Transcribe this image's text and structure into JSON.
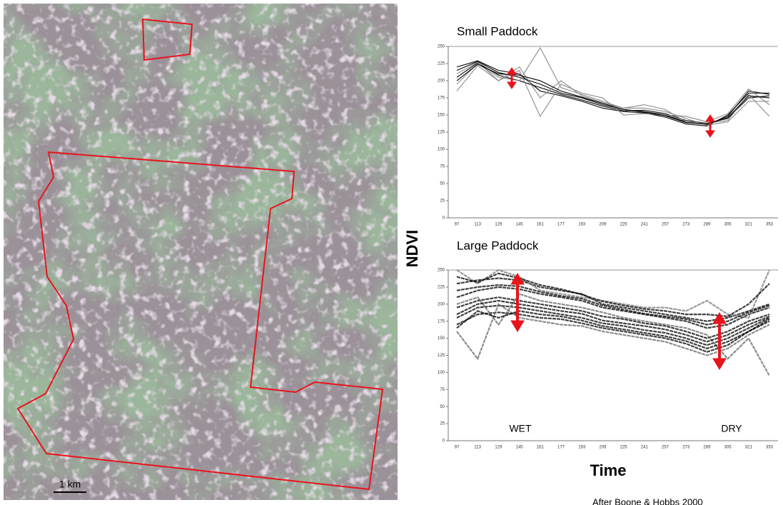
{
  "figure": {
    "y_label": "NDVI",
    "x_label": "Time",
    "scale_label": "1 km",
    "credit": "After Boone & Hobbs 2000",
    "wet_label": "WET",
    "dry_label": "DRY"
  },
  "chart_data": [
    {
      "type": "line",
      "title": "Small Paddock",
      "categories": [
        "97",
        "113",
        "129",
        "145",
        "161",
        "177",
        "193",
        "209",
        "225",
        "241",
        "257",
        "273",
        "289",
        "305",
        "321",
        "353"
      ],
      "ylim": [
        0,
        250
      ],
      "yticks": [
        0,
        25,
        50,
        75,
        100,
        125,
        150,
        175,
        200,
        225,
        250
      ],
      "series": [
        {
          "color": "#000000",
          "values": [
            215,
            228,
            212,
            205,
            195,
            182,
            175,
            165,
            158,
            155,
            150,
            140,
            136,
            148,
            185,
            180
          ]
        },
        {
          "color": "#000000",
          "values": [
            205,
            226,
            208,
            200,
            190,
            180,
            172,
            163,
            156,
            157,
            152,
            142,
            138,
            145,
            175,
            178
          ]
        },
        {
          "color": "#000000",
          "values": [
            220,
            229,
            215,
            210,
            185,
            178,
            170,
            160,
            155,
            153,
            147,
            137,
            134,
            150,
            182,
            182
          ]
        },
        {
          "color": "#888888",
          "values": [
            195,
            225,
            205,
            200,
            248,
            190,
            180,
            170,
            160,
            160,
            155,
            145,
            135,
            140,
            170,
            170
          ]
        },
        {
          "color": "#888888",
          "values": [
            185,
            222,
            200,
            215,
            148,
            195,
            182,
            175,
            150,
            152,
            150,
            148,
            140,
            152,
            188,
            165
          ]
        },
        {
          "color": "#888888",
          "values": [
            210,
            227,
            200,
            220,
            175,
            200,
            178,
            168,
            160,
            165,
            158,
            140,
            138,
            142,
            180,
            148
          ]
        },
        {
          "color": "#000000",
          "values": [
            200,
            224,
            210,
            208,
            200,
            185,
            176,
            167,
            158,
            154,
            149,
            139,
            137,
            146,
            178,
            175
          ]
        }
      ]
    },
    {
      "type": "line",
      "title": "Large Paddock",
      "categories": [
        "97",
        "113",
        "129",
        "145",
        "161",
        "177",
        "193",
        "209",
        "225",
        "241",
        "257",
        "273",
        "289",
        "305",
        "321",
        "353"
      ],
      "ylim": [
        0,
        250
      ],
      "yticks": [
        0,
        25,
        50,
        75,
        100,
        125,
        150,
        175,
        200,
        225,
        250
      ],
      "series": [
        {
          "color": "#000000",
          "values": [
            230,
            235,
            238,
            235,
            225,
            220,
            215,
            200,
            195,
            190,
            185,
            180,
            175,
            180,
            190,
            200
          ]
        },
        {
          "color": "#000000",
          "values": [
            210,
            220,
            225,
            222,
            215,
            210,
            205,
            195,
            190,
            185,
            180,
            175,
            165,
            170,
            185,
            195
          ]
        },
        {
          "color": "#000000",
          "values": [
            195,
            205,
            210,
            205,
            200,
            195,
            190,
            182,
            178,
            172,
            168,
            160,
            150,
            160,
            175,
            185
          ]
        },
        {
          "color": "#000000",
          "values": [
            180,
            195,
            198,
            195,
            190,
            185,
            180,
            172,
            168,
            162,
            158,
            150,
            140,
            150,
            165,
            180
          ]
        },
        {
          "color": "#000000",
          "values": [
            170,
            185,
            188,
            185,
            180,
            178,
            172,
            165,
            160,
            155,
            150,
            142,
            130,
            140,
            160,
            175
          ]
        },
        {
          "color": "#666666",
          "values": [
            160,
            120,
            200,
            180,
            175,
            170,
            168,
            160,
            155,
            150,
            145,
            135,
            125,
            135,
            155,
            170
          ]
        },
        {
          "color": "#777777",
          "values": [
            250,
            230,
            250,
            240,
            220,
            215,
            210,
            205,
            200,
            195,
            195,
            190,
            205,
            185,
            180,
            250
          ]
        },
        {
          "color": "#666666",
          "values": [
            200,
            210,
            170,
            215,
            205,
            200,
            195,
            188,
            180,
            175,
            170,
            165,
            155,
            120,
            150,
            95
          ]
        },
        {
          "color": "#000000",
          "values": [
            220,
            225,
            228,
            226,
            218,
            212,
            208,
            198,
            192,
            186,
            182,
            178,
            170,
            175,
            188,
            198
          ]
        },
        {
          "color": "#000000",
          "values": [
            185,
            200,
            205,
            200,
            195,
            190,
            186,
            176,
            172,
            168,
            163,
            155,
            145,
            155,
            170,
            182
          ]
        },
        {
          "color": "#000000",
          "values": [
            165,
            190,
            180,
            190,
            185,
            182,
            176,
            168,
            163,
            158,
            153,
            146,
            135,
            145,
            160,
            178
          ]
        },
        {
          "color": "#000000",
          "values": [
            240,
            232,
            245,
            238,
            228,
            222,
            214,
            204,
            198,
            193,
            190,
            185,
            185,
            182,
            200,
            230
          ]
        }
      ]
    }
  ]
}
